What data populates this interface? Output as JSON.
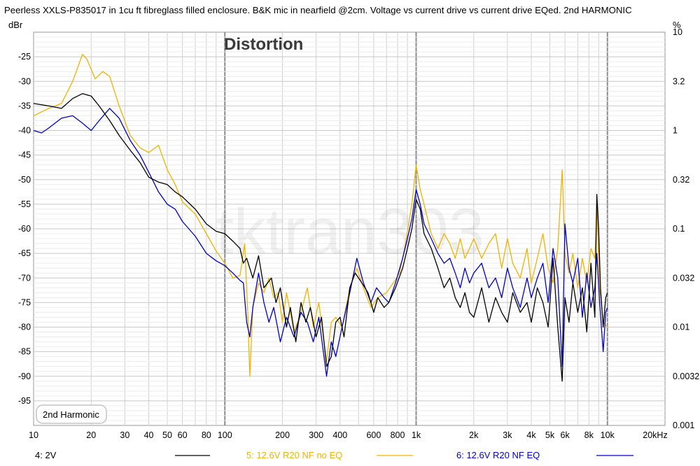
{
  "title": "Peerless XXLS-P835017 in 1cu ft fibreglass filled enclosure. B&K mic in nearfield @2cm. Voltage vs current drive vs current drive EQed. 2nd HARMONIC",
  "watermark": "tktran303",
  "chart_data": {
    "type": "line",
    "title": "Distortion",
    "annotation": "2nd Harmonic",
    "xlabel": "",
    "x_scale": "log",
    "xlim": [
      10,
      20000
    ],
    "x_ticks": [
      10,
      20,
      30,
      40,
      50,
      60,
      80,
      100,
      200,
      300,
      400,
      600,
      800,
      1000,
      2000,
      3000,
      4000,
      5000,
      6000,
      8000,
      10000,
      20000
    ],
    "x_tick_labels": [
      "10",
      "20",
      "30",
      "40",
      "50",
      "60",
      "80",
      "100",
      "200",
      "300",
      "400",
      "600",
      "800",
      "1k",
      "2k",
      "3k",
      "4k",
      "5k",
      "6k",
      "8k",
      "10k",
      "20kHz"
    ],
    "ylabel_left": "dBr",
    "ylim": [
      -100,
      -20
    ],
    "y_ticks": [
      -25,
      -30,
      -35,
      -40,
      -45,
      -50,
      -55,
      -60,
      -65,
      -70,
      -75,
      -80,
      -85,
      -90,
      -95
    ],
    "ylabel_right": "%",
    "y2_tick_labels": [
      "10",
      "3.2",
      "1",
      "0.32",
      "0.1",
      "0.032",
      "0.01",
      "0.0032",
      "0.001"
    ],
    "grid": true,
    "legend_position": "bottom",
    "series": [
      {
        "name": "4: 2V",
        "color": "#000000",
        "points": [
          [
            10,
            -34.5
          ],
          [
            12,
            -35
          ],
          [
            14,
            -35.5
          ],
          [
            16,
            -33.5
          ],
          [
            18,
            -32.5
          ],
          [
            20,
            -33
          ],
          [
            22,
            -35
          ],
          [
            25,
            -38
          ],
          [
            28,
            -41
          ],
          [
            32,
            -44
          ],
          [
            36,
            -46.5
          ],
          [
            40,
            -49.5
          ],
          [
            45,
            -50.5
          ],
          [
            50,
            -51
          ],
          [
            55,
            -52.5
          ],
          [
            60,
            -53.5
          ],
          [
            70,
            -56
          ],
          [
            80,
            -59
          ],
          [
            90,
            -60.5
          ],
          [
            100,
            -61
          ],
          [
            110,
            -62.5
          ],
          [
            120,
            -64
          ],
          [
            125,
            -67
          ],
          [
            130,
            -66
          ],
          [
            140,
            -70
          ],
          [
            150,
            -65.5
          ],
          [
            160,
            -72
          ],
          [
            175,
            -70
          ],
          [
            185,
            -75
          ],
          [
            195,
            -72
          ],
          [
            210,
            -80
          ],
          [
            220,
            -76
          ],
          [
            235,
            -83
          ],
          [
            250,
            -75
          ],
          [
            265,
            -79
          ],
          [
            280,
            -76
          ],
          [
            300,
            -82
          ],
          [
            320,
            -78
          ],
          [
            340,
            -88
          ],
          [
            360,
            -86
          ],
          [
            380,
            -79
          ],
          [
            400,
            -78
          ],
          [
            420,
            -82
          ],
          [
            450,
            -72
          ],
          [
            480,
            -69
          ],
          [
            520,
            -71
          ],
          [
            560,
            -73
          ],
          [
            600,
            -77
          ],
          [
            630,
            -74
          ],
          [
            680,
            -76
          ],
          [
            720,
            -75
          ],
          [
            780,
            -72
          ],
          [
            850,
            -68
          ],
          [
            900,
            -64
          ],
          [
            950,
            -60
          ],
          [
            1000,
            -54
          ],
          [
            1050,
            -56
          ],
          [
            1100,
            -61
          ],
          [
            1200,
            -64
          ],
          [
            1300,
            -68
          ],
          [
            1400,
            -72
          ],
          [
            1500,
            -70
          ],
          [
            1600,
            -74
          ],
          [
            1700,
            -76
          ],
          [
            1800,
            -73
          ],
          [
            1900,
            -77
          ],
          [
            2000,
            -78
          ],
          [
            2200,
            -72
          ],
          [
            2400,
            -79
          ],
          [
            2600,
            -74
          ],
          [
            2800,
            -77
          ],
          [
            3000,
            -79
          ],
          [
            3200,
            -73
          ],
          [
            3500,
            -77
          ],
          [
            3800,
            -75
          ],
          [
            4000,
            -79
          ],
          [
            4300,
            -72
          ],
          [
            4600,
            -75
          ],
          [
            4900,
            -80
          ],
          [
            5200,
            -66
          ],
          [
            5500,
            -80
          ],
          [
            5800,
            -91
          ],
          [
            6000,
            -74
          ],
          [
            6300,
            -79
          ],
          [
            6600,
            -71
          ],
          [
            7000,
            -77
          ],
          [
            7400,
            -72
          ],
          [
            7800,
            -81
          ],
          [
            8200,
            -67
          ],
          [
            8600,
            -78
          ],
          [
            8800,
            -53
          ],
          [
            9000,
            -60
          ],
          [
            9200,
            -72
          ],
          [
            9500,
            -80
          ],
          [
            9800,
            -74
          ],
          [
            10000,
            -73
          ]
        ]
      },
      {
        "name": "5: 12.6V R20 NF no EQ",
        "color": "#f0b400",
        "points": [
          [
            10,
            -37
          ],
          [
            12,
            -35.5
          ],
          [
            14,
            -34.5
          ],
          [
            16,
            -30
          ],
          [
            18,
            -24.5
          ],
          [
            19,
            -25.5
          ],
          [
            21,
            -29.5
          ],
          [
            23,
            -28
          ],
          [
            25,
            -29
          ],
          [
            28,
            -35
          ],
          [
            32,
            -41
          ],
          [
            36,
            -43.5
          ],
          [
            40,
            -44.5
          ],
          [
            45,
            -43
          ],
          [
            50,
            -48
          ],
          [
            55,
            -51
          ],
          [
            60,
            -54.5
          ],
          [
            70,
            -57
          ],
          [
            80,
            -61
          ],
          [
            90,
            -64.5
          ],
          [
            100,
            -67
          ],
          [
            110,
            -70
          ],
          [
            120,
            -69.5
          ],
          [
            127,
            -63
          ],
          [
            132,
            -78
          ],
          [
            135,
            -90
          ],
          [
            140,
            -76
          ],
          [
            150,
            -71
          ],
          [
            160,
            -73
          ],
          [
            170,
            -70
          ],
          [
            180,
            -74
          ],
          [
            190,
            -73
          ],
          [
            200,
            -79
          ],
          [
            210,
            -73
          ],
          [
            230,
            -81
          ],
          [
            250,
            -77
          ],
          [
            270,
            -72
          ],
          [
            290,
            -80
          ],
          [
            310,
            -75
          ],
          [
            340,
            -87
          ],
          [
            360,
            -79
          ],
          [
            380,
            -78
          ],
          [
            410,
            -80
          ],
          [
            450,
            -72
          ],
          [
            490,
            -68
          ],
          [
            530,
            -72
          ],
          [
            580,
            -76
          ],
          [
            630,
            -74
          ],
          [
            700,
            -73
          ],
          [
            760,
            -71
          ],
          [
            820,
            -69
          ],
          [
            880,
            -63
          ],
          [
            950,
            -55
          ],
          [
            1000,
            -47
          ],
          [
            1050,
            -52
          ],
          [
            1100,
            -55
          ],
          [
            1200,
            -61
          ],
          [
            1300,
            -64
          ],
          [
            1400,
            -61
          ],
          [
            1500,
            -63
          ],
          [
            1600,
            -66
          ],
          [
            1700,
            -62
          ],
          [
            1800,
            -66
          ],
          [
            1900,
            -64
          ],
          [
            2000,
            -62
          ],
          [
            2200,
            -66
          ],
          [
            2400,
            -63
          ],
          [
            2600,
            -61
          ],
          [
            2800,
            -68
          ],
          [
            3000,
            -62
          ],
          [
            3200,
            -67
          ],
          [
            3500,
            -70
          ],
          [
            3800,
            -64
          ],
          [
            4000,
            -71
          ],
          [
            4300,
            -66
          ],
          [
            4600,
            -61
          ],
          [
            4900,
            -68
          ],
          [
            5200,
            -71
          ],
          [
            5500,
            -64
          ],
          [
            5800,
            -48
          ],
          [
            6000,
            -65
          ],
          [
            6300,
            -69
          ],
          [
            6600,
            -65
          ],
          [
            7000,
            -72
          ],
          [
            7400,
            -66
          ],
          [
            7800,
            -71
          ],
          [
            8200,
            -64
          ],
          [
            8600,
            -66
          ],
          [
            8800,
            -55
          ],
          [
            9100,
            -72
          ],
          [
            9500,
            -79
          ],
          [
            10000,
            -80
          ]
        ]
      },
      {
        "name": "6: 12.6V R20 NF EQ",
        "color": "#0000cc",
        "points": [
          [
            10,
            -40
          ],
          [
            11,
            -40.5
          ],
          [
            12,
            -39.5
          ],
          [
            14,
            -37.5
          ],
          [
            16,
            -37
          ],
          [
            18,
            -38.5
          ],
          [
            20,
            -40
          ],
          [
            22,
            -38
          ],
          [
            25,
            -35.5
          ],
          [
            28,
            -37.5
          ],
          [
            32,
            -42
          ],
          [
            36,
            -45
          ],
          [
            40,
            -48.5
          ],
          [
            45,
            -52.5
          ],
          [
            50,
            -55
          ],
          [
            55,
            -56
          ],
          [
            60,
            -58.5
          ],
          [
            70,
            -61.5
          ],
          [
            80,
            -65
          ],
          [
            90,
            -66.5
          ],
          [
            100,
            -67.5
          ],
          [
            110,
            -69
          ],
          [
            120,
            -70.5
          ],
          [
            125,
            -71
          ],
          [
            130,
            -79
          ],
          [
            135,
            -82
          ],
          [
            140,
            -76
          ],
          [
            150,
            -69
          ],
          [
            160,
            -75
          ],
          [
            170,
            -79
          ],
          [
            180,
            -76
          ],
          [
            195,
            -83
          ],
          [
            210,
            -78
          ],
          [
            230,
            -82
          ],
          [
            250,
            -77
          ],
          [
            270,
            -79
          ],
          [
            290,
            -83
          ],
          [
            310,
            -78
          ],
          [
            340,
            -90
          ],
          [
            360,
            -83
          ],
          [
            380,
            -86
          ],
          [
            410,
            -80
          ],
          [
            450,
            -73
          ],
          [
            490,
            -66
          ],
          [
            530,
            -71
          ],
          [
            580,
            -75
          ],
          [
            620,
            -72
          ],
          [
            680,
            -74
          ],
          [
            720,
            -75
          ],
          [
            780,
            -71
          ],
          [
            850,
            -66
          ],
          [
            900,
            -62
          ],
          [
            950,
            -58
          ],
          [
            1000,
            -52
          ],
          [
            1050,
            -55
          ],
          [
            1100,
            -59
          ],
          [
            1200,
            -62
          ],
          [
            1300,
            -65
          ],
          [
            1400,
            -67
          ],
          [
            1500,
            -66
          ],
          [
            1600,
            -69
          ],
          [
            1700,
            -72
          ],
          [
            1800,
            -68
          ],
          [
            1900,
            -71
          ],
          [
            2000,
            -69
          ],
          [
            2200,
            -67
          ],
          [
            2400,
            -72
          ],
          [
            2600,
            -70
          ],
          [
            2800,
            -74
          ],
          [
            3000,
            -68
          ],
          [
            3200,
            -72
          ],
          [
            3500,
            -76
          ],
          [
            3800,
            -70
          ],
          [
            4000,
            -74
          ],
          [
            4300,
            -70
          ],
          [
            4600,
            -67
          ],
          [
            4900,
            -75
          ],
          [
            5200,
            -64
          ],
          [
            5500,
            -70
          ],
          [
            5800,
            -88
          ],
          [
            6000,
            -59
          ],
          [
            6300,
            -68
          ],
          [
            6600,
            -71
          ],
          [
            7000,
            -66
          ],
          [
            7400,
            -78
          ],
          [
            7800,
            -69
          ],
          [
            8200,
            -76
          ],
          [
            8600,
            -72
          ],
          [
            8800,
            -65
          ],
          [
            9100,
            -75
          ],
          [
            9500,
            -85
          ],
          [
            9800,
            -77
          ],
          [
            10000,
            -76
          ]
        ]
      }
    ]
  }
}
